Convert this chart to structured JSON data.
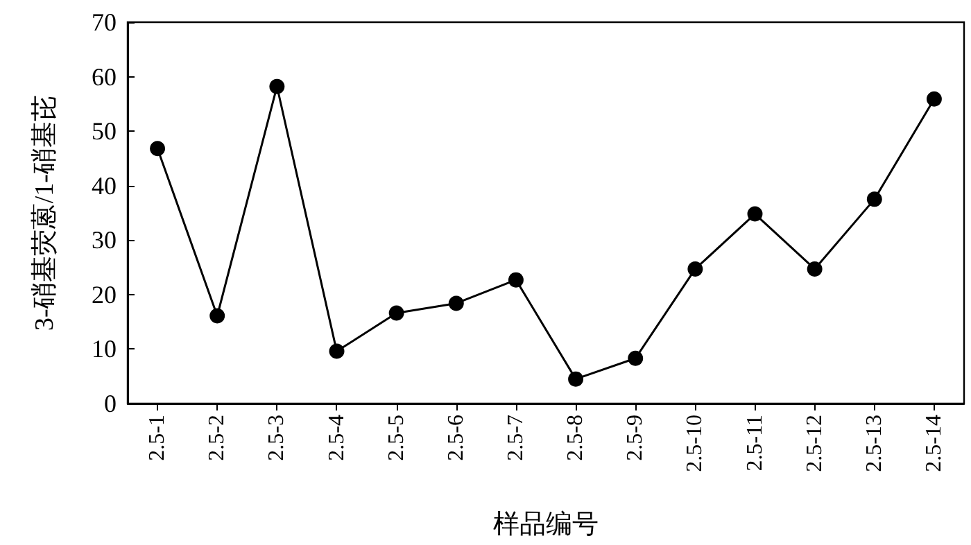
{
  "chart_data": {
    "type": "line",
    "xlabel": "样品编号",
    "ylabel": "3-硝基荧蒽/1-硝基芘",
    "categories": [
      "2.5-1",
      "2.5-2",
      "2.5-3",
      "2.5-4",
      "2.5-5",
      "2.5-6",
      "2.5-7",
      "2.5-8",
      "2.5-9",
      "2.5-10",
      "2.5-11",
      "2.5-12",
      "2.5-13",
      "2.5-14"
    ],
    "series": [
      {
        "color": "#000000",
        "values": [
          46.8,
          16.1,
          58.2,
          9.6,
          16.6,
          18.4,
          22.7,
          4.5,
          8.3,
          24.7,
          34.8,
          24.7,
          37.5,
          55.9
        ]
      }
    ],
    "ylim": [
      0,
      70
    ],
    "yticks": [
      0,
      10,
      20,
      30,
      40,
      50,
      60,
      70
    ],
    "marker": "circle",
    "line_style": "solid"
  }
}
